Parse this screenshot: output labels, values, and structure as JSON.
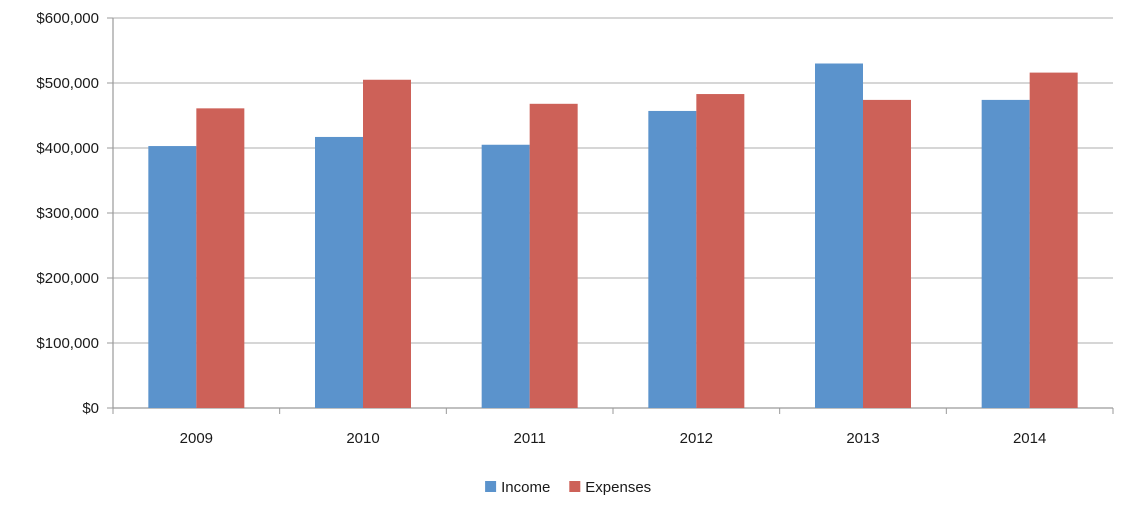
{
  "chart_data": {
    "type": "bar",
    "title": "",
    "xlabel": "",
    "ylabel": "",
    "categories": [
      "2009",
      "2010",
      "2011",
      "2012",
      "2013",
      "2014"
    ],
    "series": [
      {
        "name": "Income",
        "color": "#5b93cc",
        "values": [
          403000,
          417000,
          405000,
          457000,
          530000,
          474000
        ]
      },
      {
        "name": "Expenses",
        "color": "#cd6158",
        "values": [
          461000,
          505000,
          468000,
          483000,
          474000,
          516000
        ]
      }
    ],
    "ylim": [
      0,
      600000
    ],
    "yticks": [
      0,
      100000,
      200000,
      300000,
      400000,
      500000,
      600000
    ],
    "ytick_labels": [
      "$0",
      "$100,000",
      "$200,000",
      "$300,000",
      "$400,000",
      "$500,000",
      "$600,000"
    ],
    "grid": true,
    "legend_position": "bottom"
  }
}
